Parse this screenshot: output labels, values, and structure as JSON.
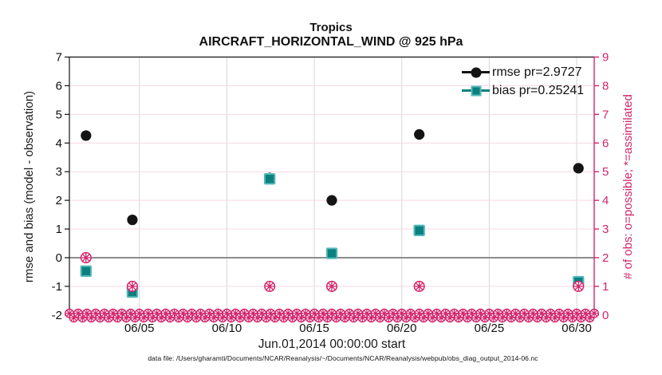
{
  "figure": {
    "title_line1": "Tropics",
    "title_line2": "AIRCRAFT_HORIZONTAL_WIND @ 925 hPa",
    "footer": "data file: /Users/gharamti/Documents/NCAR/Reanalysis/~/Documents/NCAR/Reanalysis/webpub/obs_diag_output_2014-06.nc"
  },
  "legend": {
    "items": [
      {
        "label": "rmse pr=2.9727",
        "marker": "filled-circle",
        "color": "#141414"
      },
      {
        "label": "bias pr=0.25241",
        "marker": "filled-square",
        "color": "#0c7f7f"
      }
    ]
  },
  "chart_data": {
    "type": "scatter",
    "title": "Tropics",
    "subtitle": "AIRCRAFT_HORIZONTAL_WIND @ 925 hPa",
    "x_axis": {
      "label": "Jun.01,2014 00:00:00 start",
      "range_days": [
        1,
        31
      ],
      "tick_days": [
        5,
        10,
        15,
        20,
        25,
        30
      ],
      "tick_labels": [
        "06/05",
        "06/10",
        "06/15",
        "06/20",
        "06/25",
        "06/30"
      ]
    },
    "y_left": {
      "label": "rmse and bias (model - observation)",
      "range": [
        -2,
        7
      ],
      "ticks": [
        -2,
        -1,
        0,
        1,
        2,
        3,
        4,
        5,
        6,
        7
      ],
      "color": "#111111"
    },
    "y_right": {
      "label": "# of obs: o=possible; *=assimilated",
      "range": [
        0,
        9
      ],
      "ticks": [
        0,
        1,
        2,
        3,
        4,
        5,
        6,
        7,
        8,
        9
      ],
      "color": "#d2266c"
    },
    "points_x_days": [
      1.95,
      4.6,
      12.45,
      16.0,
      21.0,
      30.1
    ],
    "series": [
      {
        "name": "rmse pr=2.9727",
        "axis": "left",
        "marker": "filled-circle",
        "color": "#141414",
        "values": [
          4.26,
          1.32,
          2.78,
          2.0,
          4.3,
          3.12
        ]
      },
      {
        "name": "bias pr=0.25241",
        "axis": "left",
        "marker": "filled-square",
        "color": "#0c7f7f",
        "edge_color": "#55b9b9",
        "values": [
          -0.47,
          -1.2,
          2.75,
          0.15,
          0.95,
          -0.84
        ]
      },
      {
        "name": "obs possible",
        "axis": "right",
        "marker": "circle-asterisk",
        "color": "#d2266c",
        "values": [
          2,
          1,
          1,
          1,
          1,
          1
        ]
      },
      {
        "name": "obs assimilated",
        "axis": "right",
        "marker": "asterisk",
        "color": "#d2266c",
        "values": [
          2,
          1,
          1,
          1,
          1,
          1
        ]
      }
    ],
    "zero_obs_band": {
      "axis": "right",
      "value": 0,
      "day_start": 1,
      "day_end": 31,
      "step_days": 0.25,
      "color": "#d2266c"
    },
    "grid": {
      "horizontal_color": "#f8d7e3",
      "vertical_color": "#d6d6d6",
      "zero_line_color": "#8c8c8c",
      "horizontal_lines_left_values": [
        -1,
        1,
        2,
        3,
        4,
        5,
        6
      ],
      "legend_position": "top-right-inside"
    }
  }
}
